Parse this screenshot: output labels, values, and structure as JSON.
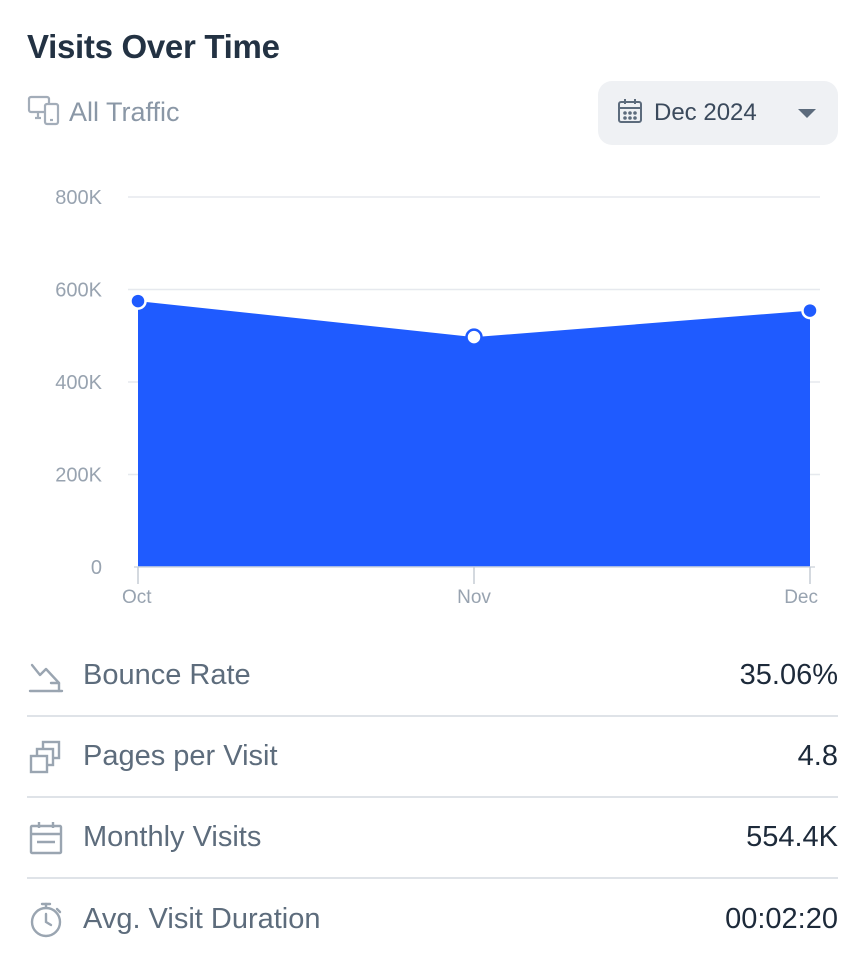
{
  "widget": {
    "title": "Visits Over Time",
    "traffic_label": "All Traffic",
    "traffic_icon": "devices-icon",
    "date_select": {
      "value": "Dec 2024",
      "icon": "calendar-icon"
    }
  },
  "colors": {
    "area": "#1f5bff",
    "grid": "#e6e9ee",
    "axis_text": "#98a3b0"
  },
  "chart_data": {
    "type": "area",
    "x": [
      "Oct",
      "Nov",
      "Dec"
    ],
    "series": [
      {
        "values": [
          575000,
          497000,
          554400
        ]
      }
    ],
    "yticks": [
      "0",
      "200K",
      "400K",
      "600K",
      "800K"
    ],
    "ylim": [
      0,
      800000
    ],
    "grid": true,
    "title": "",
    "xlabel": "",
    "ylabel": ""
  },
  "metrics": [
    {
      "label": "Bounce Rate",
      "value": "35.06%",
      "icon": "trend-down-icon"
    },
    {
      "label": "Pages per Visit",
      "value": "4.8",
      "icon": "pages-stack-icon"
    },
    {
      "label": "Monthly Visits",
      "value": "554.4K",
      "icon": "calendar-icon"
    },
    {
      "label": "Avg. Visit Duration",
      "value": "00:02:20",
      "icon": "stopwatch-icon"
    }
  ]
}
